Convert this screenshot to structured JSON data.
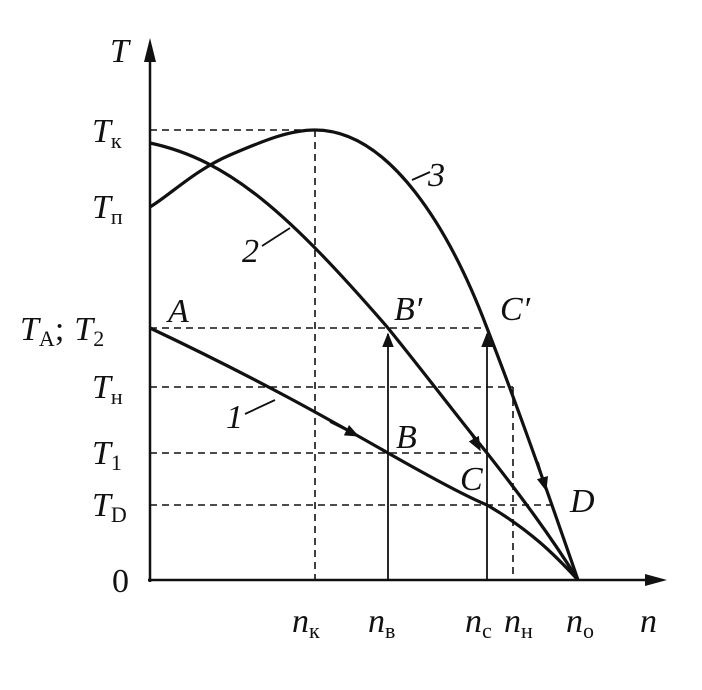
{
  "axes": {
    "y_name": "T",
    "x_name": "n"
  },
  "y_labels": [
    {
      "main": "T",
      "sub": "к"
    },
    {
      "main": "T",
      "sub": "п"
    },
    {
      "main": "T",
      "sub": "A",
      "sep": ";",
      "main2": "T",
      "sub2": "2"
    },
    {
      "main": "T",
      "sub": "н"
    },
    {
      "main": "T",
      "sub": "1"
    },
    {
      "main": "T",
      "sub": "D"
    },
    {
      "main": "0"
    }
  ],
  "x_labels": [
    {
      "main": "n",
      "sub": "к"
    },
    {
      "main": "n",
      "sub": "в"
    },
    {
      "main": "n",
      "sub": "с"
    },
    {
      "main": "n",
      "sub": "н"
    },
    {
      "main": "n",
      "sub": "о"
    }
  ],
  "curves": [
    {
      "label": "1"
    },
    {
      "label": "2"
    },
    {
      "label": "3"
    }
  ],
  "points": [
    {
      "label": "A"
    },
    {
      "label": "B"
    },
    {
      "label": "B′"
    },
    {
      "label": "C"
    },
    {
      "label": "C′"
    },
    {
      "label": "D"
    }
  ]
}
